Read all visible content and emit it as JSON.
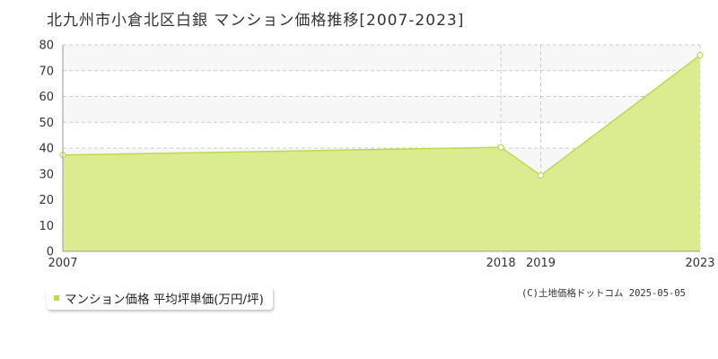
{
  "title": "北九州市小倉北区白銀 マンション価格推移[2007-2023]",
  "copyright": "(C)土地価格ドットコム 2025-05-05",
  "colors": {
    "fill": "#dbeb8f",
    "line": "#b9dc4c",
    "band": "#f7f7f7",
    "grid": "#cccccc",
    "axis": "#999999",
    "legend_marker": "#b9dc4c"
  },
  "chart_data": {
    "type": "area",
    "title": "北九州市小倉北区白銀 マンション価格推移[2007-2023]",
    "xlabel": "",
    "ylabel": "",
    "x": [
      "2007",
      "2018",
      "2019",
      "2023"
    ],
    "series": [
      {
        "name": "マンション価格 平均坪単価(万円/坪)",
        "values": [
          37.3,
          40.3,
          29.4,
          76.0
        ]
      }
    ],
    "ylim": [
      0,
      80
    ],
    "yticks": [
      "0",
      "10",
      "20",
      "30",
      "40",
      "50",
      "60",
      "70",
      "80"
    ],
    "grid": true,
    "legend": "bottom-left"
  }
}
